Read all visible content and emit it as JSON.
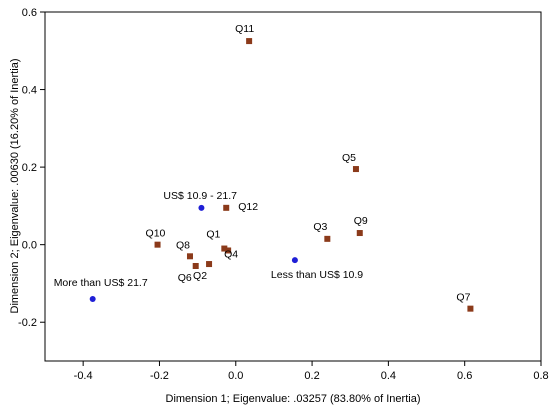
{
  "chart_data": {
    "type": "scatter",
    "title": "",
    "xlabel": "Dimension 1; Eigenvalue: .03257 (83.80% of Inertia)",
    "ylabel": "Dimension 2; Eigenvalue: .00630 (16.20% of Inertia)",
    "xlim": [
      -0.5,
      0.8
    ],
    "ylim": [
      -0.3,
      0.6
    ],
    "xticks": [
      -0.4,
      -0.2,
      0.0,
      0.2,
      0.4,
      0.6,
      0.8
    ],
    "xtick_labels": [
      "-0.4",
      "-0.2",
      "0.0",
      "0.2",
      "0.4",
      "0.6",
      "0.8"
    ],
    "yticks": [
      -0.2,
      0.0,
      0.2,
      0.4,
      0.6
    ],
    "ytick_labels": [
      "-0.2",
      "0.0",
      "0.2",
      "0.4",
      "0.6"
    ],
    "grid": false,
    "legend": "none",
    "series": [
      {
        "marker": "square",
        "color": "#8b3a1a",
        "points": [
          {
            "label": "Q1",
            "x": -0.03,
            "y": -0.01
          },
          {
            "label": "Q2",
            "x": -0.07,
            "y": -0.05
          },
          {
            "label": "Q3",
            "x": 0.24,
            "y": 0.015
          },
          {
            "label": "Q4",
            "x": -0.02,
            "y": -0.015
          },
          {
            "label": "Q5",
            "x": 0.315,
            "y": 0.195
          },
          {
            "label": "Q6",
            "x": -0.105,
            "y": -0.055
          },
          {
            "label": "Q7",
            "x": 0.615,
            "y": -0.165
          },
          {
            "label": "Q8",
            "x": -0.12,
            "y": -0.03
          },
          {
            "label": "Q9",
            "x": 0.325,
            "y": 0.03
          },
          {
            "label": "Q10",
            "x": -0.205,
            "y": 0.0
          },
          {
            "label": "Q11",
            "x": 0.035,
            "y": 0.525
          },
          {
            "label": "Q12",
            "x": -0.025,
            "y": 0.095
          }
        ]
      },
      {
        "marker": "circle",
        "color": "#1f1fd6",
        "points": [
          {
            "label": "US$ 10.9 - 21.7",
            "x": -0.09,
            "y": 0.095
          },
          {
            "label": "Less than US$ 10.9",
            "x": 0.155,
            "y": -0.04
          },
          {
            "label": "More than US$ 21.7",
            "x": -0.375,
            "y": -0.14
          }
        ]
      }
    ]
  }
}
